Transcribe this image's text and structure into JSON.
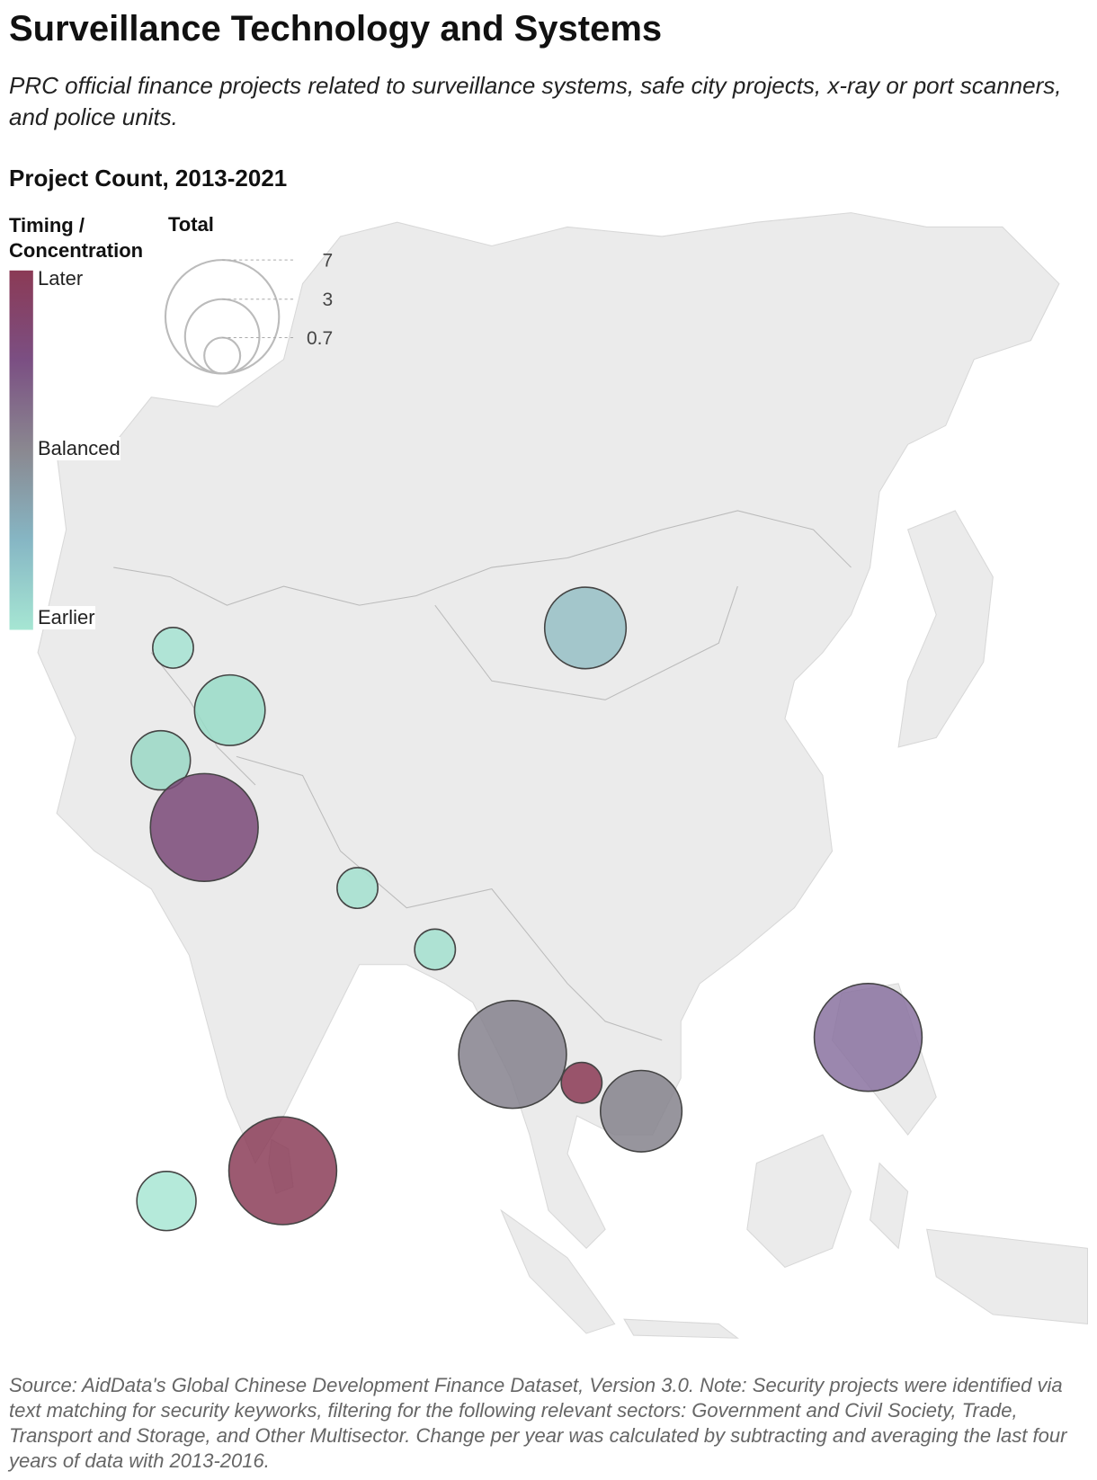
{
  "header": {
    "title": "Surveillance Technology and Systems",
    "subtitle": "PRC official finance projects  related to surveillance systems, safe city projects, x-ray or port scanners, and police units.",
    "section": "Project Count, 2013-2021"
  },
  "legend": {
    "color_title": "Timing / Concentration",
    "color_labels": [
      "Later",
      "Balanced",
      "Earlier"
    ],
    "colors": [
      "#8b3a55",
      "#7b4f83",
      "#8a8890",
      "#86b6c4",
      "#a6e6d3"
    ],
    "size_title": "Total",
    "size_values": [
      7,
      3,
      0.7
    ]
  },
  "bubbles": [
    {
      "value": 0.9,
      "color": "#a6e3d2"
    },
    {
      "value": 2.7,
      "color": "#99dcc8"
    },
    {
      "value": 1.9,
      "color": "#9ad8c6"
    },
    {
      "value": 6.3,
      "color": "#7a4978"
    },
    {
      "value": 0.9,
      "color": "#a3e0cf"
    },
    {
      "value": 0.9,
      "color": "#a3e0cf"
    },
    {
      "value": 3.6,
      "color": "#96bfc6"
    },
    {
      "value": 6.3,
      "color": "#85818d"
    },
    {
      "value": 0.9,
      "color": "#8b3a55"
    },
    {
      "value": 3.6,
      "color": "#85828c"
    },
    {
      "value": 6.3,
      "color": "#8a72a0"
    },
    {
      "value": 6.3,
      "color": "#8b3d58"
    },
    {
      "value": 1.9,
      "color": "#a8e6d4"
    }
  ],
  "footer": {
    "source": "Source: AidData's Global Chinese Development Finance Dataset, Version 3.0. Note: Security projects were identified via text matching for security keyworks, filtering for the following relevant sectors: Government and Civil Society, Trade, Transport and Storage, and Other Multisector. Change per year was calculated by subtracting and averaging the last four years of data with 2013-2016."
  }
}
